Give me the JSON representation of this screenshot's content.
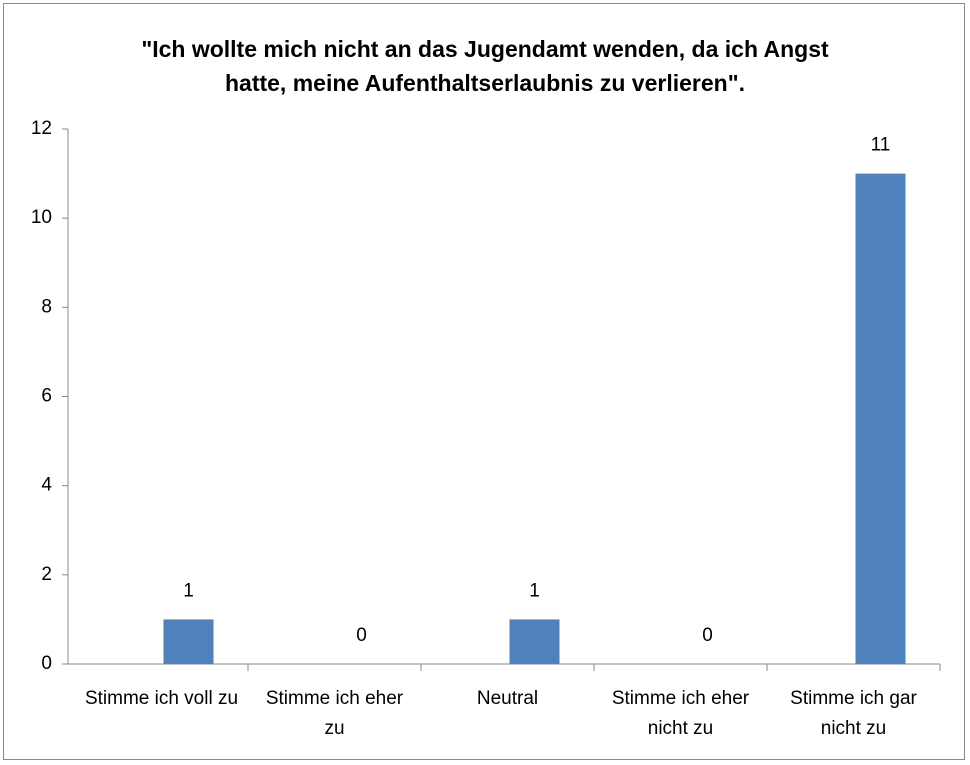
{
  "chart_data": {
    "type": "bar",
    "title": "\"Ich wollte mich nicht an das Jugendamt wenden, da ich Angst hatte, meine Aufenthaltserlaubnis zu verlieren\".",
    "categories": [
      "Stimme ich voll zu",
      "Stimme ich eher zu",
      "Neutral",
      "Stimme ich eher nicht zu",
      "Stimme ich gar nicht zu"
    ],
    "values": [
      1,
      0,
      1,
      0,
      11
    ],
    "color": "#4f81bd",
    "ylim": [
      0,
      12
    ],
    "yticks": [
      0,
      2,
      4,
      6,
      8,
      10,
      12
    ],
    "grid": false
  }
}
